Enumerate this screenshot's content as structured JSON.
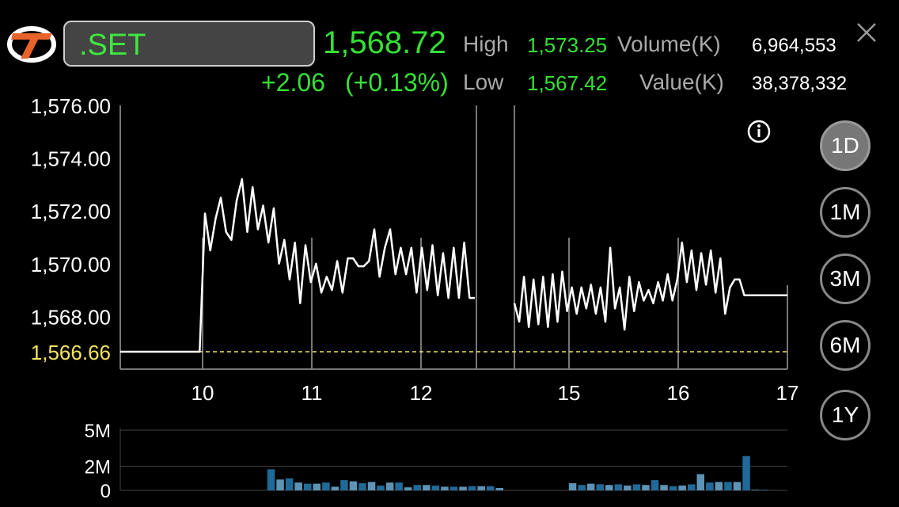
{
  "header": {
    "symbol": ".SET",
    "last_price": "1,568.72",
    "change": "+2.06",
    "change_pct": "(+0.13%)",
    "high_label": "High",
    "high_value": "1,573.25",
    "low_label": "Low",
    "low_value": "1,567.42",
    "volume_label": "Volume(K)",
    "volume_value": "6,964,553",
    "valuek_label": "Value(K)",
    "valuek_value": "38,378,332"
  },
  "periods": [
    "1D",
    "1M",
    "3M",
    "6M",
    "1Y"
  ],
  "active_period": "1D",
  "colors": {
    "up": "#35e035",
    "price_line": "#ffffff",
    "prev_close_line": "#f2e45c",
    "volume_bar": "#1f6a98",
    "volume_bar_alt": "#5d94b5"
  },
  "icons": [
    "logo-icon",
    "close-icon",
    "info-icon"
  ],
  "chart_data": [
    {
      "type": "line",
      "title": "",
      "xlabel": "",
      "ylabel": "",
      "x_ticks": [
        "10",
        "11",
        "12",
        "15",
        "16",
        "17"
      ],
      "y_ticks": [
        "1,576.00",
        "1,574.00",
        "1,572.00",
        "1,570.00",
        "1,568.00"
      ],
      "ylim": [
        1566.0,
        1576.0
      ],
      "prev_close_label": "1,566.66",
      "prev_close": 1566.66,
      "series": [
        {
          "values": [
            1566.66,
            1566.66,
            1566.66,
            1566.66,
            1566.66,
            1566.66,
            1566.66,
            1566.66,
            1566.66,
            1566.66,
            1566.66,
            1566.66,
            1566.66,
            1566.66,
            1566.66,
            1566.66,
            1571.9,
            1570.5,
            1571.7,
            1572.5,
            1571.2,
            1570.9,
            1572.4,
            1573.2,
            1571.2,
            1572.9,
            1571.3,
            1572.2,
            1570.8,
            1572.1,
            1570.0,
            1570.9,
            1569.4,
            1570.8,
            1568.5,
            1570.7,
            1569.3,
            1570.0,
            1568.9,
            1569.5,
            1569.0,
            1570.1,
            1568.9,
            1570.2,
            1570.2,
            1569.9,
            1569.9,
            1570.1,
            1571.3,
            1569.5,
            1570.6,
            1571.3,
            1569.6,
            1570.6,
            1569.6,
            1570.6,
            1568.9,
            1570.6,
            1569.0,
            1570.7,
            1568.8,
            1570.4,
            1568.7,
            1570.6,
            1568.7,
            1570.8,
            1568.7,
            1568.7
          ],
          "gap_after_index": 67,
          "values_after_gap": [
            1568.5,
            1567.8,
            1569.5,
            1567.6,
            1569.4,
            1567.7,
            1569.5,
            1567.6,
            1569.6,
            1567.8,
            1569.7,
            1568.2,
            1569.1,
            1568.1,
            1569.1,
            1568.3,
            1569.2,
            1568.1,
            1569.1,
            1567.8,
            1570.6,
            1568.3,
            1569.1,
            1567.5,
            1569.5,
            1568.2,
            1569.3,
            1568.6,
            1569.0,
            1568.5,
            1569.3,
            1568.6,
            1569.6,
            1568.6,
            1569.4,
            1570.8,
            1569.3,
            1570.5,
            1569.0,
            1570.4,
            1569.2,
            1570.5,
            1568.9,
            1570.2,
            1568.1,
            1569.1,
            1569.4,
            1569.4,
            1568.8,
            1568.8,
            1568.8,
            1568.8,
            1568.8,
            1568.8,
            1568.8,
            1568.8,
            1568.8,
            1568.8
          ]
        }
      ]
    },
    {
      "type": "bar",
      "title": "",
      "y_ticks": [
        "5M",
        "2M",
        "0"
      ],
      "ylim": [
        0,
        5.2
      ],
      "series": [
        {
          "values": [
            0,
            0,
            0,
            0,
            0,
            0,
            0,
            0,
            0,
            0,
            0,
            0,
            0,
            0,
            0,
            0,
            1.75,
            0.9,
            1.0,
            0.65,
            0.55,
            0.55,
            0.65,
            0.3,
            0.85,
            0.75,
            0.6,
            0.7,
            0.4,
            0.65,
            0.65,
            0.25,
            0.45,
            0.45,
            0.4,
            0.3,
            0.3,
            0.3,
            0.35,
            0.35,
            0.35,
            0.2,
            0,
            0,
            0,
            0,
            0,
            0,
            0,
            0.6,
            0.45,
            0.55,
            0.5,
            0.45,
            0.5,
            0.4,
            0.5,
            0.45,
            0.85,
            0.45,
            0.35,
            0.4,
            0.5,
            1.35,
            0.65,
            0.7,
            0.7,
            0.7,
            2.85,
            0.05,
            0.05
          ]
        }
      ]
    }
  ]
}
